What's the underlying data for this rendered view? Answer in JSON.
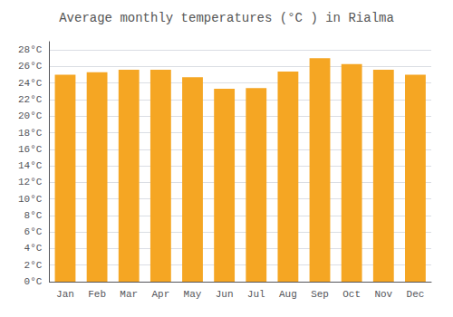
{
  "chart_data": {
    "type": "bar",
    "title": "Average monthly temperatures (°C ) in Rialma",
    "categories": [
      "Jan",
      "Feb",
      "Mar",
      "Apr",
      "May",
      "Jun",
      "Jul",
      "Aug",
      "Sep",
      "Oct",
      "Nov",
      "Dec"
    ],
    "values": [
      25.0,
      25.3,
      25.6,
      25.6,
      24.7,
      23.3,
      23.4,
      25.4,
      27.0,
      26.3,
      25.6,
      25.0
    ],
    "color": "#F5A623",
    "ylim": [
      0,
      29
    ],
    "yticks": [
      {
        "value": 0,
        "label": "0°C"
      },
      {
        "value": 2,
        "label": "2°C"
      },
      {
        "value": 4,
        "label": "4°C"
      },
      {
        "value": 6,
        "label": "6°C"
      },
      {
        "value": 8,
        "label": "8°C"
      },
      {
        "value": 10,
        "label": "10°C"
      },
      {
        "value": 12,
        "label": "12°C"
      },
      {
        "value": 14,
        "label": "14°C"
      },
      {
        "value": 16,
        "label": "16°C"
      },
      {
        "value": 18,
        "label": "18°C"
      },
      {
        "value": 20,
        "label": "20°C"
      },
      {
        "value": 22,
        "label": "22°C"
      },
      {
        "value": 24,
        "label": "24°C"
      },
      {
        "value": 26,
        "label": "26°C"
      },
      {
        "value": 28,
        "label": "28°C"
      }
    ],
    "grid": true
  }
}
